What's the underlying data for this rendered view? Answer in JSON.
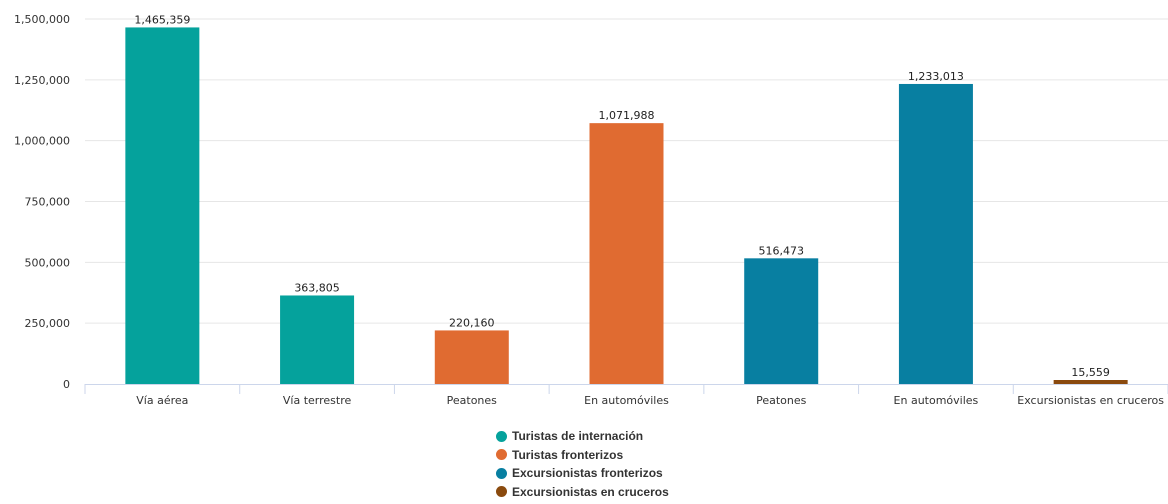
{
  "chart_data": {
    "type": "bar",
    "categories": [
      "Vía aérea",
      "Vía terrestre",
      "Peatones",
      "En automóviles",
      "Peatones",
      "En automóviles",
      "Excursionistas en cruceros"
    ],
    "values": [
      1465359,
      363805,
      220160,
      1071988,
      516473,
      1233013,
      15559
    ],
    "value_labels": [
      "1,465,359",
      "363,805",
      "220,160",
      "1,071,988",
      "516,473",
      "1,233,013",
      "15,559"
    ],
    "bar_series": [
      0,
      0,
      1,
      1,
      2,
      2,
      3
    ],
    "series": [
      {
        "name": "Turistas de internación",
        "color": "#05a29c"
      },
      {
        "name": "Turistas fronterizos",
        "color": "#e06b31"
      },
      {
        "name": "Excursionistas fronterizos",
        "color": "#087fa1"
      },
      {
        "name": "Excursionistas en cruceros",
        "color": "#8a4a0e"
      }
    ],
    "yticks": [
      0,
      250000,
      500000,
      750000,
      1000000,
      1250000,
      1500000
    ],
    "ytick_labels": [
      "0",
      "250,000",
      "500,000",
      "750,000",
      "1,000,000",
      "1,250,000",
      "1,500,000"
    ],
    "ylim": [
      0,
      1500000
    ],
    "grid": true,
    "legend_position": "bottom-center",
    "title": "",
    "xlabel": "",
    "ylabel": ""
  }
}
